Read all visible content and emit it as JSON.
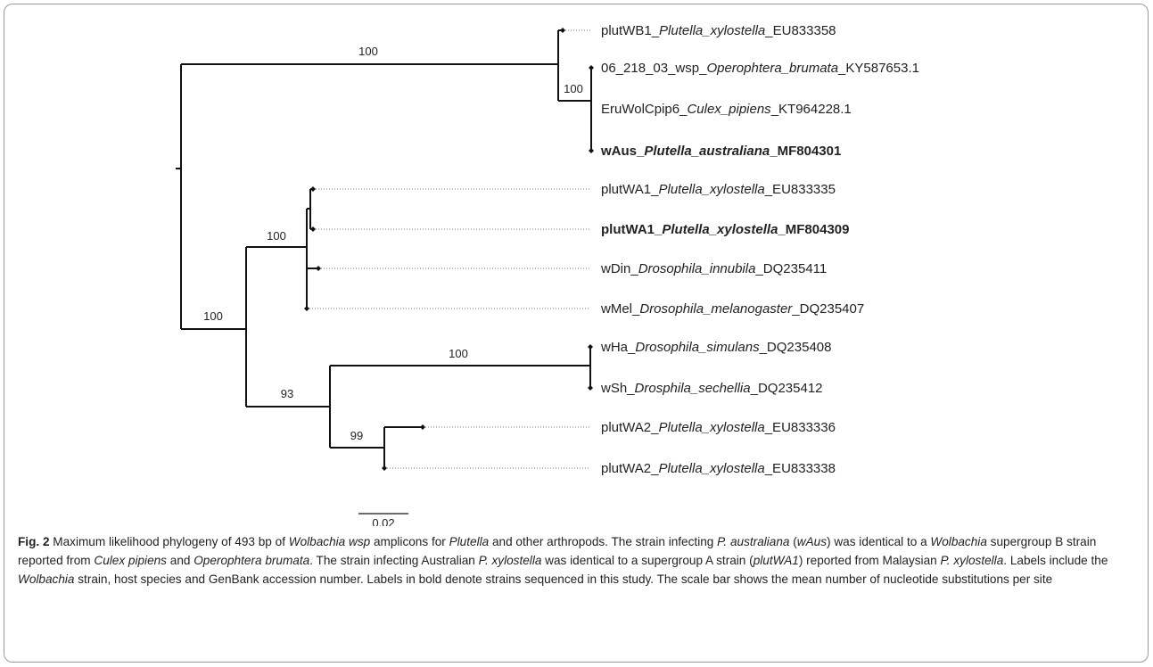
{
  "tree": {
    "tips": [
      {
        "strain": "plutWB1_",
        "host": "Plutella_xylostella",
        "acc": "_EU833358",
        "bold": false
      },
      {
        "strain": "06_218_03_wsp_",
        "host": "Operophtera_brumata",
        "acc": "_KY587653.1",
        "bold": false
      },
      {
        "strain": "EruWolCpip6_",
        "host": "Culex_pipiens",
        "acc": "_KT964228.1",
        "bold": false
      },
      {
        "strain": "wAus_",
        "host": "Plutella_australiana",
        "acc": "_MF804301",
        "bold": true
      },
      {
        "strain": "plutWA1_",
        "host": "Plutella_xylostella",
        "acc": "_EU833335",
        "bold": false
      },
      {
        "strain": "plutWA1_",
        "host": "Plutella_xylostella",
        "acc": "_MF804309",
        "bold": true
      },
      {
        "strain": "wDin_",
        "host": "Drosophila_innubila",
        "acc": "_DQ235411",
        "bold": false
      },
      {
        "strain": "wMel_",
        "host": "Drosophila_melanogaster",
        "acc": "_DQ235407",
        "bold": false
      },
      {
        "strain": "wHa_",
        "host": "Drosophila_simulans",
        "acc": "_DQ235408",
        "bold": false
      },
      {
        "strain": "wSh_",
        "host": "Drosphila_sechellia",
        "acc": "_DQ235412",
        "bold": false
      },
      {
        "strain": "plutWA2_",
        "host": "Plutella_xylostella",
        "acc": "_EU833336",
        "bold": false
      },
      {
        "strain": "plutWA2_",
        "host": "Plutella_xylostella",
        "acc": "_EU833338",
        "bold": false
      }
    ],
    "bootstrap": [
      "100",
      "100",
      "100",
      "100",
      "100",
      "93",
      "99"
    ],
    "scale_label": "0.02"
  },
  "caption": {
    "fig_label": "Fig. 2",
    "text_1": " Maximum likelihood phylogeny of 493 bp of ",
    "it_1": "Wolbachia wsp",
    "text_2": " amplicons for ",
    "it_2": "Plutella",
    "text_3": " and other arthropods. The strain infecting ",
    "it_3": "P. australiana",
    "text_4": " (",
    "it_4": "wAus",
    "text_5": ") was identical to a ",
    "it_5": "Wolbachia",
    "text_6": " supergroup B strain reported from ",
    "it_6": "Culex pipiens",
    "text_7": " and ",
    "it_7": "Operophtera brumata",
    "text_8": ". The strain infecting Australian ",
    "it_8": "P. xylostella",
    "text_9": " was identical to a supergroup A strain (",
    "it_9": "plutWA1",
    "text_10": ") reported from Malaysian ",
    "it_10": "P. xylostella",
    "text_11": ". Labels include the ",
    "it_11": "Wolbachia",
    "text_12": " strain, host species and GenBank accession number. Labels in bold denote strains sequenced in this study. The scale bar shows the mean number of nucleotide substitutions per site"
  }
}
